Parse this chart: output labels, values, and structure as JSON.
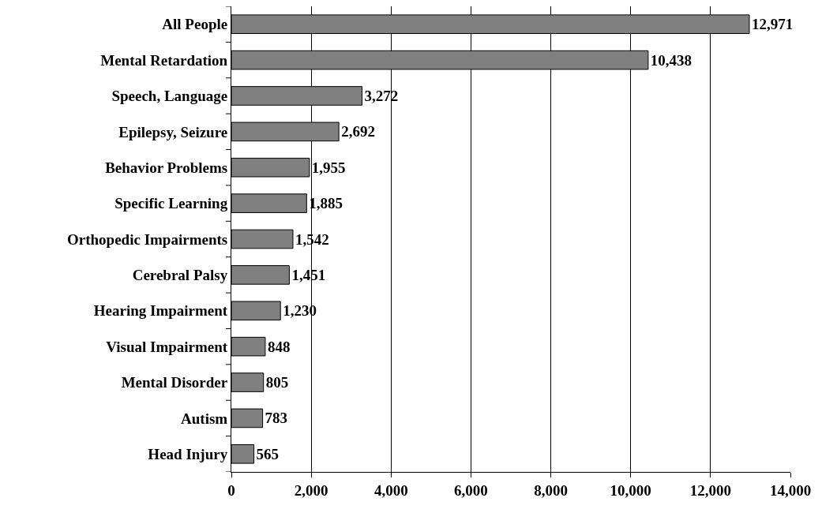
{
  "chart_data": {
    "type": "bar",
    "orientation": "horizontal",
    "categories": [
      "All People",
      "Mental Retardation",
      "Speech, Language",
      "Epilepsy, Seizure",
      "Behavior Problems",
      "Specific Learning",
      "Orthopedic Impairments",
      "Cerebral Palsy",
      "Hearing Impairment",
      "Visual Impairment",
      "Mental Disorder",
      "Autism",
      "Head Injury"
    ],
    "values": [
      12971,
      10438,
      3272,
      2692,
      1955,
      1885,
      1542,
      1451,
      1230,
      848,
      805,
      783,
      565
    ],
    "color": "#808080",
    "xlim": [
      0,
      14000
    ],
    "xticks": [
      0,
      {
        "value": 2000,
        "label": "2,000"
      },
      {
        "value": 4000,
        "label": "4,000"
      },
      {
        "value": 6000,
        "label": "6,000"
      },
      {
        "value": 8000,
        "label": "8,000"
      },
      {
        "value": 10000,
        "label": "10,000"
      },
      {
        "value": 12000,
        "label": "12,000"
      },
      {
        "value": 14000,
        "label": "14,000"
      }
    ],
    "value_labels": [
      "12,971",
      "10,438",
      "3,272",
      "2,692",
      "1,955",
      "1,885",
      "1,542",
      "1,451",
      "1,230",
      "848",
      "805",
      "783",
      "565"
    ],
    "grid": "x"
  }
}
